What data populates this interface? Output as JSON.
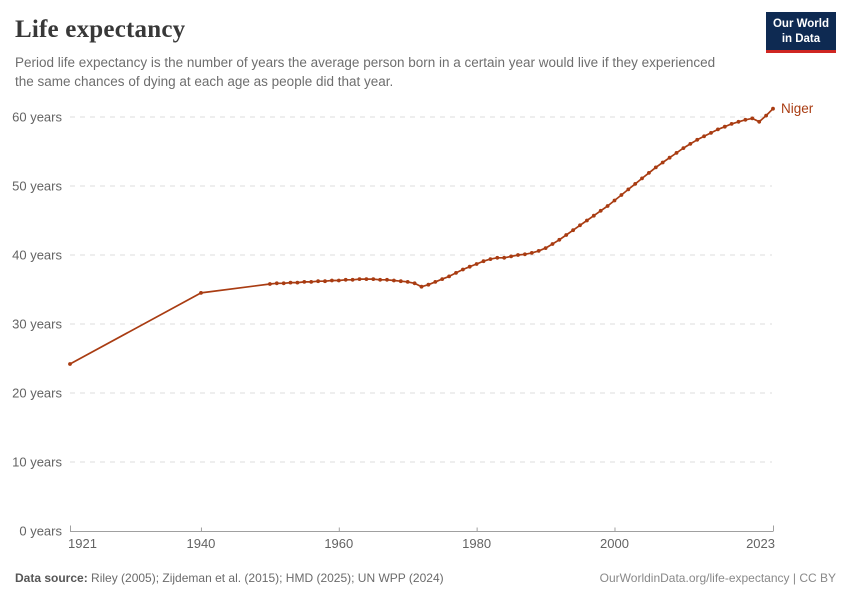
{
  "header": {
    "title": "Life expectancy",
    "subtitle": "Period life expectancy is the number of years the average person born in a certain year would live if they experienced the same chances of dying at each age as people did that year.",
    "logo": {
      "line1": "Our World",
      "line2": "in Data"
    }
  },
  "colors": {
    "line": "#a93c12",
    "logo_bg": "#0e2a52",
    "logo_stripe": "#cf2622",
    "grid": "#dedede",
    "axis": "#a0a0a0",
    "tick_label": "#636363"
  },
  "chart_data": {
    "type": "line",
    "title": "Life expectancy",
    "xlabel": "",
    "ylabel": "",
    "xlim": [
      1921,
      2023
    ],
    "ylim": [
      0,
      62
    ],
    "grid": "horizontal-dashed",
    "legend": "end-of-line-label",
    "yticks": [
      {
        "value": 0,
        "label": "0 years"
      },
      {
        "value": 10,
        "label": "10 years"
      },
      {
        "value": 20,
        "label": "20 years"
      },
      {
        "value": 30,
        "label": "30 years"
      },
      {
        "value": 40,
        "label": "40 years"
      },
      {
        "value": 50,
        "label": "50 years"
      },
      {
        "value": 60,
        "label": "60 years"
      }
    ],
    "xticks": [
      {
        "value": 1921,
        "label": "1921"
      },
      {
        "value": 1940,
        "label": "1940"
      },
      {
        "value": 1960,
        "label": "1960"
      },
      {
        "value": 1980,
        "label": "1980"
      },
      {
        "value": 2000,
        "label": "2000"
      },
      {
        "value": 2023,
        "label": "2023"
      }
    ],
    "series": [
      {
        "name": "Niger",
        "color": "#a93c12",
        "points": [
          [
            1921,
            24.2
          ],
          [
            1940,
            34.5
          ],
          [
            1950,
            35.8
          ],
          [
            1951,
            35.9
          ],
          [
            1952,
            35.9
          ],
          [
            1953,
            36.0
          ],
          [
            1954,
            36.0
          ],
          [
            1955,
            36.1
          ],
          [
            1956,
            36.1
          ],
          [
            1957,
            36.2
          ],
          [
            1958,
            36.2
          ],
          [
            1959,
            36.3
          ],
          [
            1960,
            36.3
          ],
          [
            1961,
            36.4
          ],
          [
            1962,
            36.4
          ],
          [
            1963,
            36.5
          ],
          [
            1964,
            36.5
          ],
          [
            1965,
            36.5
          ],
          [
            1966,
            36.4
          ],
          [
            1967,
            36.4
          ],
          [
            1968,
            36.3
          ],
          [
            1969,
            36.2
          ],
          [
            1970,
            36.1
          ],
          [
            1971,
            35.9
          ],
          [
            1972,
            35.4
          ],
          [
            1973,
            35.7
          ],
          [
            1974,
            36.1
          ],
          [
            1975,
            36.5
          ],
          [
            1976,
            36.9
          ],
          [
            1977,
            37.4
          ],
          [
            1978,
            37.9
          ],
          [
            1979,
            38.3
          ],
          [
            1980,
            38.7
          ],
          [
            1981,
            39.1
          ],
          [
            1982,
            39.4
          ],
          [
            1983,
            39.6
          ],
          [
            1984,
            39.6
          ],
          [
            1985,
            39.8
          ],
          [
            1986,
            40.0
          ],
          [
            1987,
            40.1
          ],
          [
            1988,
            40.3
          ],
          [
            1989,
            40.6
          ],
          [
            1990,
            41.0
          ],
          [
            1991,
            41.6
          ],
          [
            1992,
            42.2
          ],
          [
            1993,
            42.9
          ],
          [
            1994,
            43.6
          ],
          [
            1995,
            44.3
          ],
          [
            1996,
            45.0
          ],
          [
            1997,
            45.7
          ],
          [
            1998,
            46.4
          ],
          [
            1999,
            47.1
          ],
          [
            2000,
            47.9
          ],
          [
            2001,
            48.7
          ],
          [
            2002,
            49.5
          ],
          [
            2003,
            50.3
          ],
          [
            2004,
            51.1
          ],
          [
            2005,
            51.9
          ],
          [
            2006,
            52.7
          ],
          [
            2007,
            53.4
          ],
          [
            2008,
            54.1
          ],
          [
            2009,
            54.8
          ],
          [
            2010,
            55.5
          ],
          [
            2011,
            56.1
          ],
          [
            2012,
            56.7
          ],
          [
            2013,
            57.2
          ],
          [
            2014,
            57.7
          ],
          [
            2015,
            58.2
          ],
          [
            2016,
            58.6
          ],
          [
            2017,
            59.0
          ],
          [
            2018,
            59.3
          ],
          [
            2019,
            59.6
          ],
          [
            2020,
            59.8
          ],
          [
            2021,
            59.3
          ],
          [
            2022,
            60.2
          ],
          [
            2023,
            61.2
          ]
        ]
      }
    ]
  },
  "footer": {
    "datasource_label": "Data source:",
    "datasource_text": " Riley (2005); Zijdeman et al. (2015); HMD (2025); UN WPP (2024)",
    "rights": "OurWorldinData.org/life-expectancy | CC BY"
  }
}
